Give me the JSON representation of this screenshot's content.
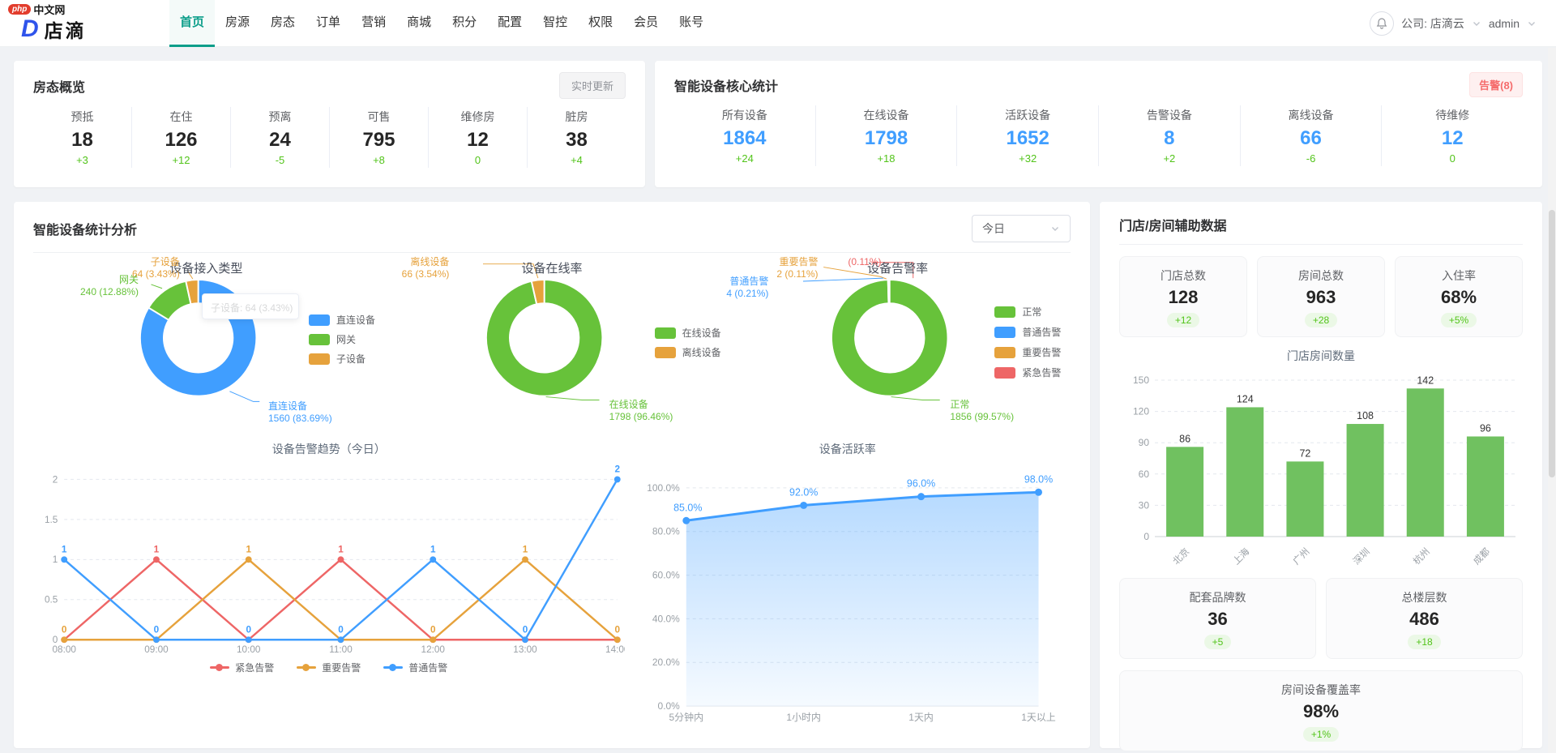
{
  "colors": {
    "accent": "#0c9e8a",
    "blue": "#409eff",
    "green": "#67c23a",
    "orange": "#e6a23c",
    "red": "#ee6666",
    "delta_green": "#52c41a",
    "bar_green": "#70c160"
  },
  "header": {
    "logo": {
      "badge": "php",
      "badge_suffix": "中文网",
      "d_letter": "D",
      "brand": "店滴"
    },
    "nav": [
      "首页",
      "房源",
      "房态",
      "订单",
      "营销",
      "商城",
      "积分",
      "配置",
      "智控",
      "权限",
      "会员",
      "账号"
    ],
    "active_nav": "首页",
    "company": "公司: 店滴云",
    "user": "admin"
  },
  "room_status": {
    "title": "房态概览",
    "refresh_button": "实时更新",
    "stats": [
      {
        "label": "预抵",
        "value": "18",
        "delta": "+3"
      },
      {
        "label": "在住",
        "value": "126",
        "delta": "+12"
      },
      {
        "label": "预离",
        "value": "24",
        "delta": "-5"
      },
      {
        "label": "可售",
        "value": "795",
        "delta": "+8"
      },
      {
        "label": "维修房",
        "value": "12",
        "delta": "0"
      },
      {
        "label": "脏房",
        "value": "38",
        "delta": "+4"
      }
    ]
  },
  "device_core": {
    "title": "智能设备核心统计",
    "alarm_badge": "告警(8)",
    "stats": [
      {
        "label": "所有设备",
        "value": "1864",
        "delta": "+24"
      },
      {
        "label": "在线设备",
        "value": "1798",
        "delta": "+18"
      },
      {
        "label": "活跃设备",
        "value": "1652",
        "delta": "+32"
      },
      {
        "label": "告警设备",
        "value": "8",
        "delta": "+2"
      },
      {
        "label": "离线设备",
        "value": "66",
        "delta": "-6"
      },
      {
        "label": "待维修",
        "value": "12",
        "delta": "0"
      }
    ]
  },
  "analysis": {
    "title": "智能设备统计分析",
    "period": "今日",
    "tooltip": "子设备: 64 (3.43%)",
    "donuts": [
      {
        "title": "设备接入类型",
        "slices": [
          {
            "name": "直连设备",
            "value": 1560,
            "pct": "83.69%",
            "color": "#409eff"
          },
          {
            "name": "网关",
            "value": 240,
            "pct": "12.88%",
            "color": "#67c23a"
          },
          {
            "name": "子设备",
            "value": 64,
            "pct": "3.43%",
            "color": "#e6a23c"
          }
        ]
      },
      {
        "title": "设备在线率",
        "slices": [
          {
            "name": "在线设备",
            "value": 1798,
            "pct": "96.46%",
            "color": "#67c23a"
          },
          {
            "name": "离线设备",
            "value": 66,
            "pct": "3.54%",
            "color": "#e6a23c"
          }
        ]
      },
      {
        "title": "设备告警率",
        "slices": [
          {
            "name": "正常",
            "value": 1856,
            "pct": "99.57%",
            "color": "#67c23a"
          },
          {
            "name": "普通告警",
            "value": 4,
            "pct": "0.21%",
            "color": "#409eff"
          },
          {
            "name": "重要告警",
            "value": 2,
            "pct": "0.11%",
            "color": "#e6a23c"
          },
          {
            "name": "紧急告警",
            "value": 2,
            "pct": "0.11%",
            "color": "#ee6666"
          }
        ]
      }
    ],
    "alarm_trend": {
      "title": "设备告警趋势（今日）",
      "x": [
        "08:00",
        "09:00",
        "10:00",
        "11:00",
        "12:00",
        "13:00",
        "14:00"
      ],
      "yticks": [
        0,
        0.5,
        1,
        1.5,
        2
      ],
      "ymax": 2,
      "series": [
        {
          "name": "紧急告警",
          "color": "#ee6666",
          "values": [
            0,
            1,
            0,
            1,
            0,
            0,
            0
          ]
        },
        {
          "name": "重要告警",
          "color": "#e6a23c",
          "values": [
            0,
            0,
            1,
            0,
            0,
            1,
            0
          ]
        },
        {
          "name": "普通告警",
          "color": "#409eff",
          "values": [
            1,
            0,
            0,
            0,
            1,
            0,
            2
          ]
        }
      ],
      "point_labels": [
        {
          "xi": 0,
          "text": "1",
          "y": 1,
          "color": "#409eff"
        },
        {
          "xi": 1,
          "text": "1",
          "y": 1,
          "color": "#ee6666"
        },
        {
          "xi": 2,
          "text": "1",
          "y": 1,
          "color": "#e6a23c"
        },
        {
          "xi": 3,
          "text": "1",
          "y": 1,
          "color": "#ee6666"
        },
        {
          "xi": 4,
          "text": "1",
          "y": 1,
          "color": "#409eff"
        },
        {
          "xi": 5,
          "text": "1",
          "y": 1,
          "color": "#e6a23c"
        },
        {
          "xi": 6,
          "text": "2",
          "y": 2,
          "color": "#409eff"
        },
        {
          "xi": 0,
          "text": "0",
          "y": 0,
          "color": "#e6a23c"
        },
        {
          "xi": 1,
          "text": "0",
          "y": 0,
          "color": "#409eff"
        },
        {
          "xi": 2,
          "text": "0",
          "y": 0,
          "color": "#409eff"
        },
        {
          "xi": 3,
          "text": "0",
          "y": 0,
          "color": "#409eff"
        },
        {
          "xi": 4,
          "text": "0",
          "y": 0,
          "color": "#e6a23c"
        },
        {
          "xi": 5,
          "text": "0",
          "y": 0,
          "color": "#409eff"
        },
        {
          "xi": 6,
          "text": "0",
          "y": 0,
          "color": "#e6a23c"
        }
      ]
    },
    "activity": {
      "title": "设备活跃率",
      "x": [
        "5分钟内",
        "1小时内",
        "1天内",
        "1天以上"
      ],
      "values": [
        85,
        92,
        96,
        98
      ],
      "labels": [
        "85.0%",
        "92.0%",
        "96.0%",
        "98.0%"
      ],
      "yticks": [
        "0.0%",
        "20.0%",
        "40.0%",
        "60.0%",
        "80.0%",
        "100.0%"
      ],
      "color": "#409eff"
    }
  },
  "store_panel": {
    "title": "门店/房间辅助数据",
    "top_stats": [
      {
        "label": "门店总数",
        "value": "128",
        "delta": "+12"
      },
      {
        "label": "房间总数",
        "value": "963",
        "delta": "+28"
      },
      {
        "label": "入住率",
        "value": "68%",
        "delta": "+5%"
      }
    ],
    "bar_chart": {
      "title": "门店房间数量",
      "categories": [
        "北京",
        "上海",
        "广州",
        "深圳",
        "杭州",
        "成都"
      ],
      "values": [
        86,
        124,
        72,
        108,
        142,
        96
      ],
      "yticks": [
        0,
        30,
        60,
        90,
        120,
        150
      ],
      "ymax": 150,
      "color": "#70c160"
    },
    "bottom_stats": [
      {
        "label": "配套品牌数",
        "value": "36",
        "delta": "+5"
      },
      {
        "label": "总楼层数",
        "value": "486",
        "delta": "+18"
      }
    ],
    "coverage_stat": {
      "label": "房间设备覆盖率",
      "value": "98%",
      "delta": "+1%"
    }
  }
}
